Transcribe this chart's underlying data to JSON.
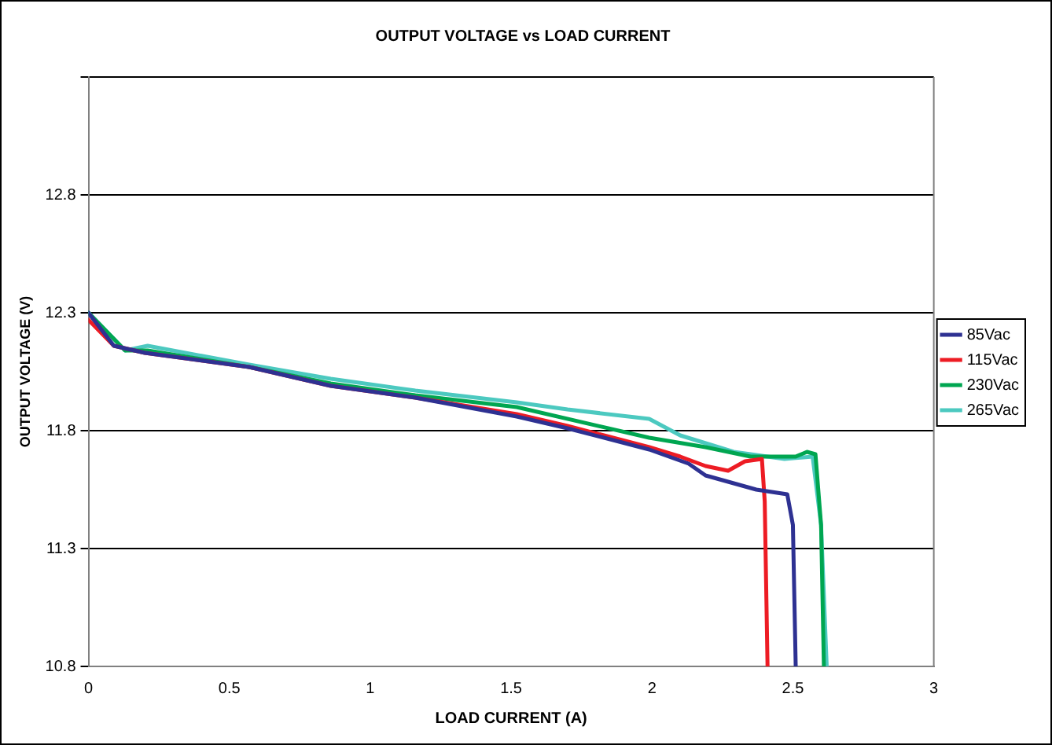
{
  "chart_data": {
    "type": "line",
    "title": "OUTPUT VOLTAGE vs LOAD CURRENT",
    "xlabel": "LOAD CURRENT (A)",
    "ylabel": "OUTPUT VOLTAGE (V)",
    "xlim": [
      0,
      3
    ],
    "xticks": [
      0,
      0.5,
      1,
      1.5,
      2,
      2.5,
      3
    ],
    "ylim": [
      10.8,
      13.3
    ],
    "yticks": [
      10.8,
      11.3,
      11.8,
      12.3,
      12.8,
      {
        "value": 13.3,
        "label": null
      }
    ],
    "grid": "y",
    "legend": "right",
    "marker": "none",
    "line_style": "solid",
    "series": [
      {
        "name": "85Vac",
        "color": "#2e3192",
        "x": [
          0,
          0.09,
          0.2,
          0.57,
          0.86,
          1.16,
          1.52,
          1.7,
          1.99,
          2.13,
          2.19,
          2.37,
          2.48,
          2.5,
          2.51
        ],
        "values": [
          12.3,
          12.16,
          12.13,
          12.07,
          11.99,
          11.94,
          11.86,
          11.81,
          11.72,
          11.66,
          11.61,
          11.55,
          11.53,
          11.4,
          10.8
        ]
      },
      {
        "name": "115Vac",
        "color": "#ed1c24",
        "x": [
          0,
          0.09,
          0.2,
          0.57,
          0.86,
          1.16,
          1.52,
          1.7,
          1.99,
          2.1,
          2.19,
          2.27,
          2.33,
          2.39,
          2.4,
          2.41
        ],
        "values": [
          12.27,
          12.16,
          12.13,
          12.07,
          11.99,
          11.94,
          11.87,
          11.82,
          11.73,
          11.69,
          11.65,
          11.63,
          11.67,
          11.68,
          11.5,
          10.8
        ]
      },
      {
        "name": "230Vac",
        "color": "#00a651",
        "x": [
          0,
          0.13,
          0.21,
          0.57,
          0.86,
          1.16,
          1.52,
          1.99,
          2.19,
          2.35,
          2.51,
          2.55,
          2.58,
          2.6,
          2.61
        ],
        "values": [
          12.3,
          12.14,
          12.14,
          12.07,
          12.0,
          11.95,
          11.9,
          11.77,
          11.73,
          11.69,
          11.69,
          11.71,
          11.7,
          11.4,
          10.8
        ]
      },
      {
        "name": "265Vac",
        "color": "#4cc9c0",
        "x": [
          0,
          0.13,
          0.21,
          0.57,
          0.86,
          1.16,
          1.52,
          1.7,
          1.99,
          2.1,
          2.29,
          2.47,
          2.57,
          2.6,
          2.62
        ],
        "values": [
          12.3,
          12.14,
          12.16,
          12.08,
          12.02,
          11.97,
          11.92,
          11.89,
          11.85,
          11.78,
          11.71,
          11.68,
          11.69,
          11.4,
          10.8
        ]
      }
    ]
  }
}
